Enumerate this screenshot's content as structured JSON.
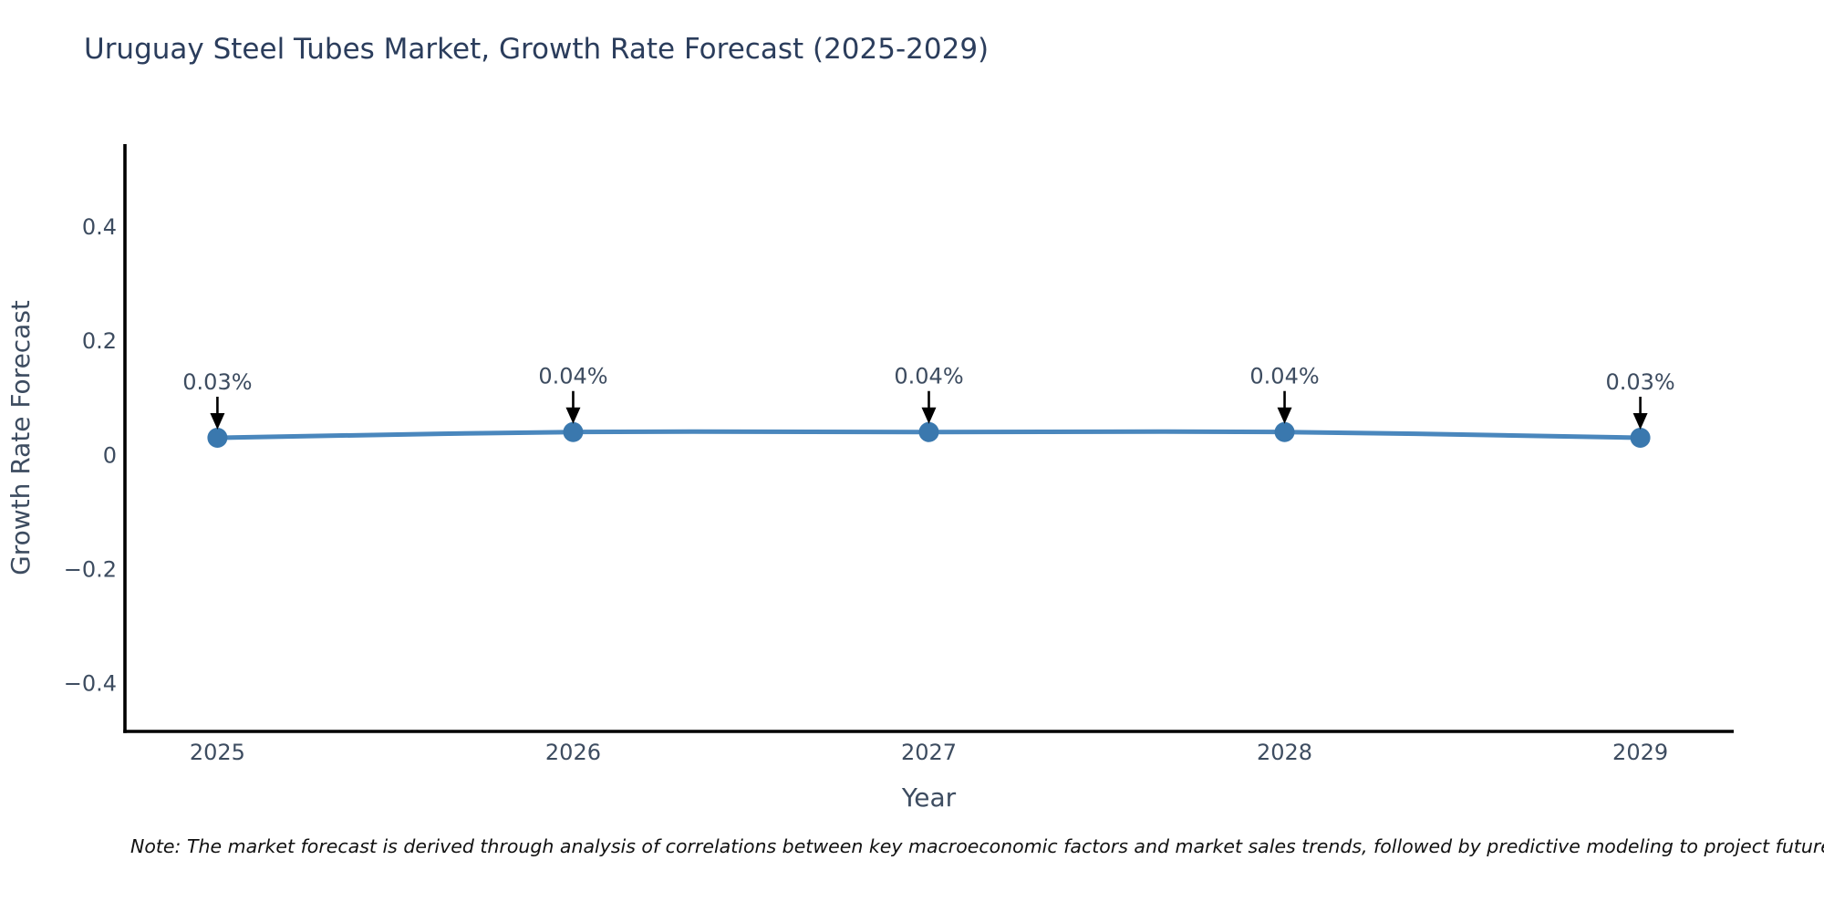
{
  "title": "Uruguay Steel Tubes Market, Growth Rate Forecast (2025-2029)",
  "footer": {
    "note": "Note: The market forecast is derived through analysis of correlations between key macroeconomic factors and market sales trends, followed by predictive modeling to project future sa"
  },
  "chart_data": {
    "type": "line",
    "title": "Uruguay Steel Tubes Market, Growth Rate Forecast (2025-2029)",
    "xlabel": "Year",
    "ylabel": "Growth Rate Forecast",
    "x": [
      2025,
      2026,
      2027,
      2028,
      2029
    ],
    "xtick_labels": [
      "2025",
      "2026",
      "2027",
      "2028",
      "2029"
    ],
    "values": [
      0.03,
      0.04,
      0.04,
      0.04,
      0.03
    ],
    "point_labels": [
      "0.03%",
      "0.04%",
      "0.04%",
      "0.04%",
      "0.03%"
    ],
    "yticks": [
      0.4,
      0.2,
      0,
      -0.2,
      -0.4
    ],
    "ytick_labels": [
      "0.4",
      "0.2",
      "0",
      "−0.2",
      "−0.4"
    ],
    "xlim": [
      2024.74,
      2029.26
    ],
    "ylim": [
      -0.485,
      0.545
    ],
    "grid": false,
    "legend": "none",
    "colors": {
      "line": "#4a87bd",
      "marker": "#3a78ae",
      "arrow": "#000000",
      "axis": "#000000",
      "tick_text": "#3d4c60",
      "annotation_text": "#3d4c60",
      "axis_label_text": "#3d4c60",
      "title_text": "#2b3d5c",
      "note_text": "#111111"
    }
  }
}
